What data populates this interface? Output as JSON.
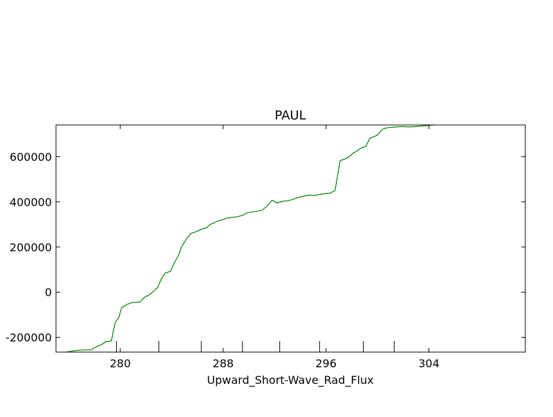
{
  "chart_data": {
    "type": "line",
    "title": "PAUL",
    "xlabel": "Upward_Short-Wave_Rad_Flux",
    "ylabel": "",
    "xlim": [
      275.0,
      311.5
    ],
    "ylim": [
      -265000,
      740000
    ],
    "x_ticks": [
      280,
      288,
      296,
      304
    ],
    "x_tick_labels": [
      "280",
      "288",
      "296",
      "304"
    ],
    "y_ticks": [
      -200000,
      0,
      200000,
      400000,
      600000
    ],
    "y_tick_labels": [
      "-200000",
      "0",
      "200000",
      "400000",
      "600000"
    ],
    "line_color": "#007f00",
    "grid": false,
    "x_minor_ticks_bottom": [
      279.7,
      283.0,
      286.3,
      289.5,
      292.4,
      295.5,
      298.9,
      301.3
    ],
    "series": [
      {
        "x": [
          275.8,
          276.5,
          277.0,
          277.7,
          278.2,
          278.6,
          278.9,
          279.3,
          279.6,
          279.9,
          280.1,
          280.3,
          280.6,
          281.0,
          281.5,
          281.9,
          282.3,
          282.6,
          282.9,
          283.2,
          283.5,
          283.9,
          284.2,
          284.5,
          284.8,
          285.2,
          285.5,
          285.9,
          286.3,
          286.7,
          287.0,
          287.3,
          287.6,
          287.9,
          288.2,
          288.5,
          288.8,
          289.1,
          289.5,
          289.8,
          290.2,
          290.6,
          291.0,
          291.4,
          291.8,
          292.2,
          292.6,
          293.0,
          293.3,
          293.6,
          293.9,
          294.3,
          294.7,
          295.1,
          295.5,
          295.9,
          296.3,
          296.7,
          297.1,
          297.5,
          297.8,
          298.1,
          298.4,
          298.8,
          299.1,
          299.4,
          299.7,
          300.0,
          300.4,
          300.8,
          301.2,
          301.6,
          302.0,
          302.4,
          302.8,
          303.2,
          303.6,
          304.0,
          304.4,
          304.6
        ],
        "y": [
          -265000,
          -258000,
          -256000,
          -255000,
          -240000,
          -230000,
          -218000,
          -216000,
          -135000,
          -110000,
          -68000,
          -62000,
          -52000,
          -45000,
          -44000,
          -22000,
          -10000,
          5000,
          20000,
          60000,
          85000,
          92000,
          130000,
          160000,
          205000,
          240000,
          260000,
          268000,
          278000,
          285000,
          300000,
          308000,
          315000,
          320000,
          326000,
          330000,
          332000,
          334000,
          340000,
          350000,
          355000,
          358000,
          362000,
          380000,
          407000,
          395000,
          402000,
          405000,
          408000,
          415000,
          420000,
          425000,
          430000,
          428000,
          432000,
          436000,
          438000,
          450000,
          582000,
          590000,
          600000,
          615000,
          625000,
          640000,
          645000,
          680000,
          688000,
          695000,
          722000,
          728000,
          730000,
          732000,
          733000,
          731000,
          732000,
          734000,
          736000,
          738000,
          740000,
          742000
        ]
      }
    ]
  }
}
